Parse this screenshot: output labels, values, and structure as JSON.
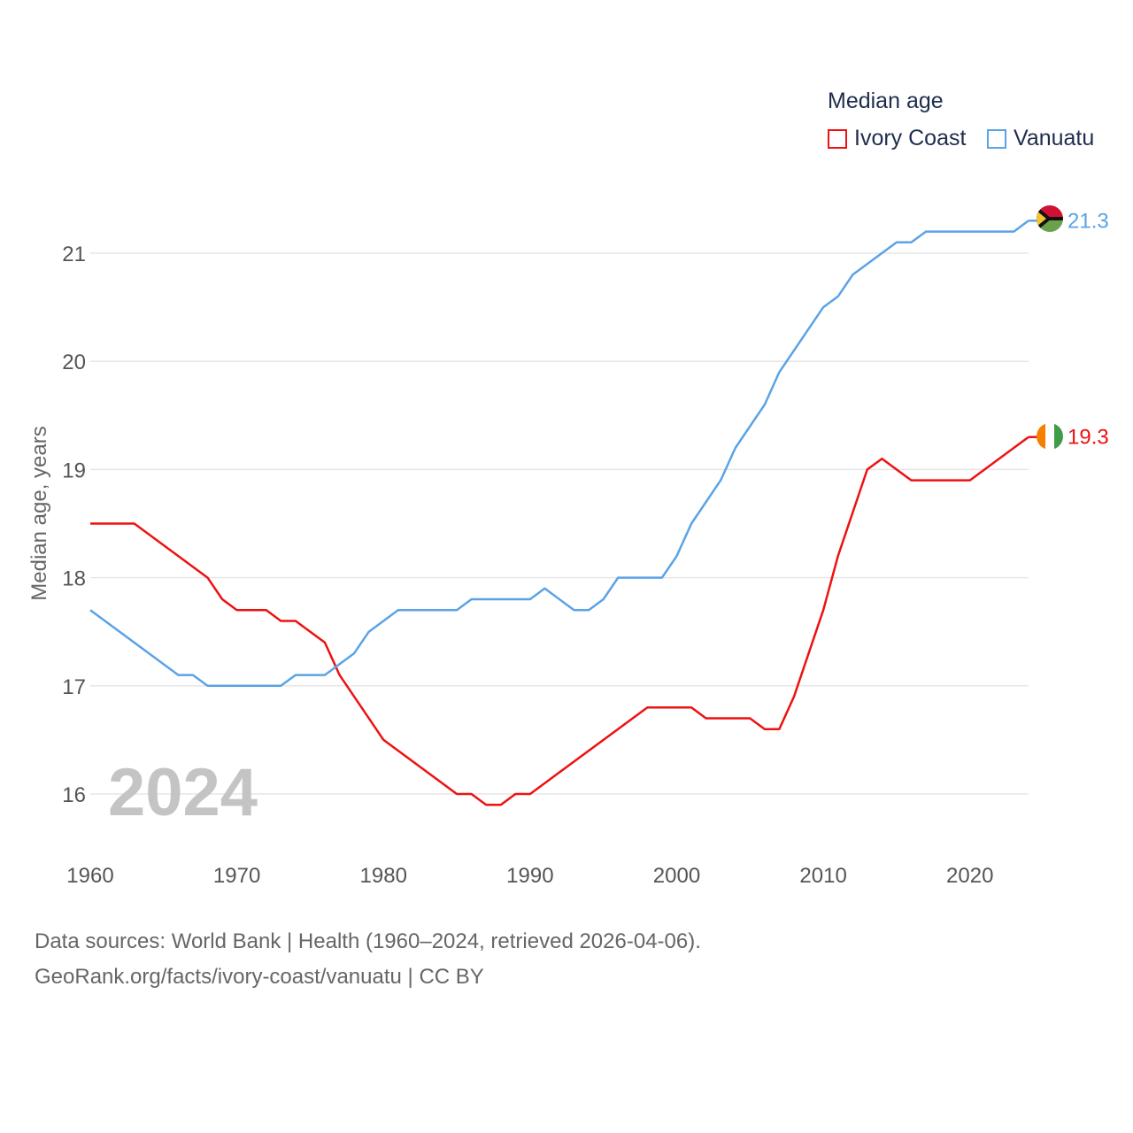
{
  "legend": {
    "title": "Median age",
    "items": [
      {
        "label": "Ivory Coast",
        "color": "#ee1111"
      },
      {
        "label": "Vanuatu",
        "color": "#5ba3e6"
      }
    ]
  },
  "year_overlay": "2024",
  "sources": {
    "line1": "Data sources: World Bank | Health (1960–2024, retrieved 2026-04-06).",
    "line2": "GeoRank.org/facts/ivory-coast/vanuatu | CC BY"
  },
  "chart_data": {
    "type": "line",
    "title": "Median age",
    "xlabel": "",
    "ylabel": "Median age, years",
    "xlim": [
      1960,
      2024
    ],
    "ylim": [
      15.5,
      21.8
    ],
    "x_ticks": [
      1960,
      1970,
      1980,
      1990,
      2000,
      2010,
      2020
    ],
    "y_ticks": [
      16,
      17,
      18,
      19,
      20,
      21
    ],
    "grid": true,
    "legend_position": "top-right",
    "series": [
      {
        "name": "Ivory Coast",
        "color": "#ee1111",
        "end_label": "19.3",
        "points": [
          [
            1960,
            18.5
          ],
          [
            1963,
            18.5
          ],
          [
            1968,
            18.0
          ],
          [
            1969,
            17.8
          ],
          [
            1970,
            17.7
          ],
          [
            1972,
            17.7
          ],
          [
            1973,
            17.6
          ],
          [
            1974,
            17.6
          ],
          [
            1976,
            17.4
          ],
          [
            1977,
            17.1
          ],
          [
            1980,
            16.5
          ],
          [
            1985,
            16.0
          ],
          [
            1986,
            16.0
          ],
          [
            1987,
            15.9
          ],
          [
            1988,
            15.9
          ],
          [
            1989,
            16.0
          ],
          [
            1990,
            16.0
          ],
          [
            1998,
            16.8
          ],
          [
            2001,
            16.8
          ],
          [
            2002,
            16.7
          ],
          [
            2005,
            16.7
          ],
          [
            2006,
            16.6
          ],
          [
            2007,
            16.6
          ],
          [
            2008,
            16.9
          ],
          [
            2010,
            17.7
          ],
          [
            2011,
            18.2
          ],
          [
            2013,
            19.0
          ],
          [
            2014,
            19.1
          ],
          [
            2016,
            18.9
          ],
          [
            2020,
            18.9
          ],
          [
            2024,
            19.3
          ]
        ]
      },
      {
        "name": "Vanuatu",
        "color": "#5ba3e6",
        "end_label": "21.3",
        "points": [
          [
            1960,
            17.7
          ],
          [
            1966,
            17.1
          ],
          [
            1967,
            17.1
          ],
          [
            1968,
            17.0
          ],
          [
            1973,
            17.0
          ],
          [
            1974,
            17.1
          ],
          [
            1976,
            17.1
          ],
          [
            1978,
            17.3
          ],
          [
            1979,
            17.5
          ],
          [
            1981,
            17.7
          ],
          [
            1985,
            17.7
          ],
          [
            1986,
            17.8
          ],
          [
            1990,
            17.8
          ],
          [
            1991,
            17.9
          ],
          [
            1993,
            17.7
          ],
          [
            1994,
            17.7
          ],
          [
            1995,
            17.8
          ],
          [
            1996,
            18.0
          ],
          [
            1999,
            18.0
          ],
          [
            2000,
            18.2
          ],
          [
            2001,
            18.5
          ],
          [
            2003,
            18.9
          ],
          [
            2004,
            19.2
          ],
          [
            2006,
            19.6
          ],
          [
            2007,
            19.9
          ],
          [
            2010,
            20.5
          ],
          [
            2011,
            20.6
          ],
          [
            2012,
            20.8
          ],
          [
            2015,
            21.1
          ],
          [
            2016,
            21.1
          ],
          [
            2017,
            21.2
          ],
          [
            2023,
            21.2
          ],
          [
            2024,
            21.3
          ]
        ]
      }
    ]
  }
}
